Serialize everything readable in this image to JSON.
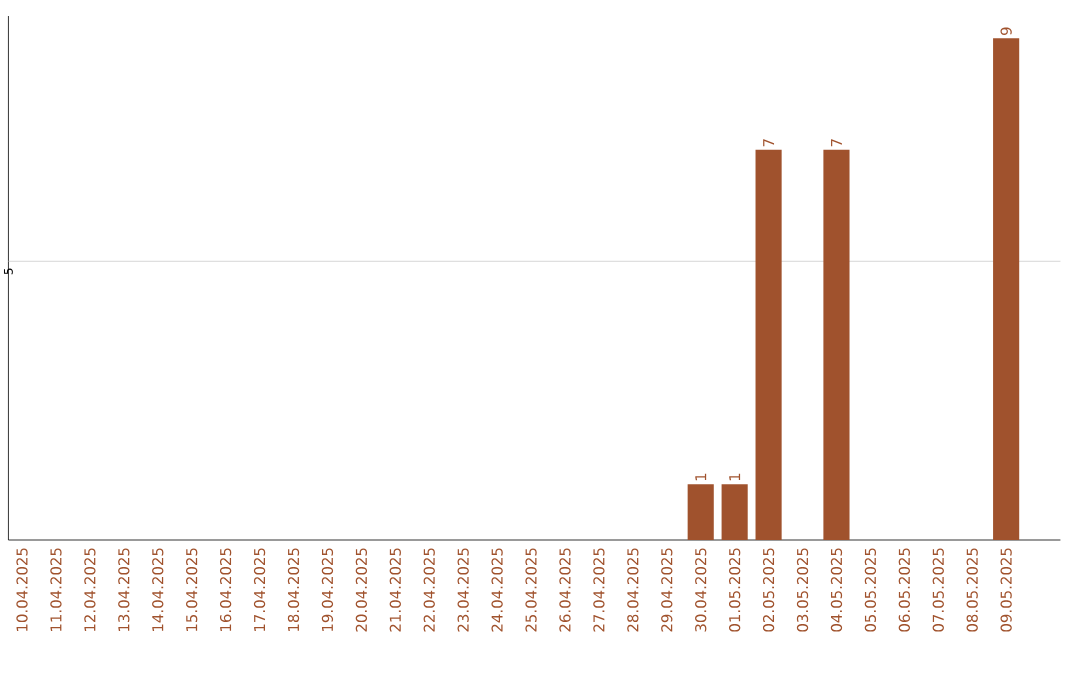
{
  "chart_data": {
    "type": "bar",
    "categories": [
      "10.04.2025",
      "11.04.2025",
      "12.04.2025",
      "13.04.2025",
      "14.04.2025",
      "15.04.2025",
      "16.04.2025",
      "17.04.2025",
      "18.04.2025",
      "19.04.2025",
      "20.04.2025",
      "21.04.2025",
      "22.04.2025",
      "23.04.2025",
      "24.04.2025",
      "25.04.2025",
      "26.04.2025",
      "27.04.2025",
      "28.04.2025",
      "29.04.2025",
      "30.04.2025",
      "01.05.2025",
      "02.05.2025",
      "03.05.2025",
      "04.05.2025",
      "05.05.2025",
      "06.05.2025",
      "07.05.2025",
      "08.05.2025",
      "09.05.2025"
    ],
    "values": [
      null,
      null,
      null,
      null,
      null,
      null,
      null,
      null,
      null,
      null,
      null,
      null,
      null,
      null,
      null,
      null,
      null,
      null,
      null,
      null,
      1,
      1,
      7,
      null,
      7,
      null,
      null,
      null,
      null,
      9
    ],
    "data_labels": true,
    "color": "#a0522d",
    "ylim": [
      0,
      9.4
    ],
    "tick_labels": "x",
    "ref_lines": [
      {
        "axis": "y",
        "value": 5,
        "label": "5",
        "color": "#cccccc"
      }
    ]
  }
}
